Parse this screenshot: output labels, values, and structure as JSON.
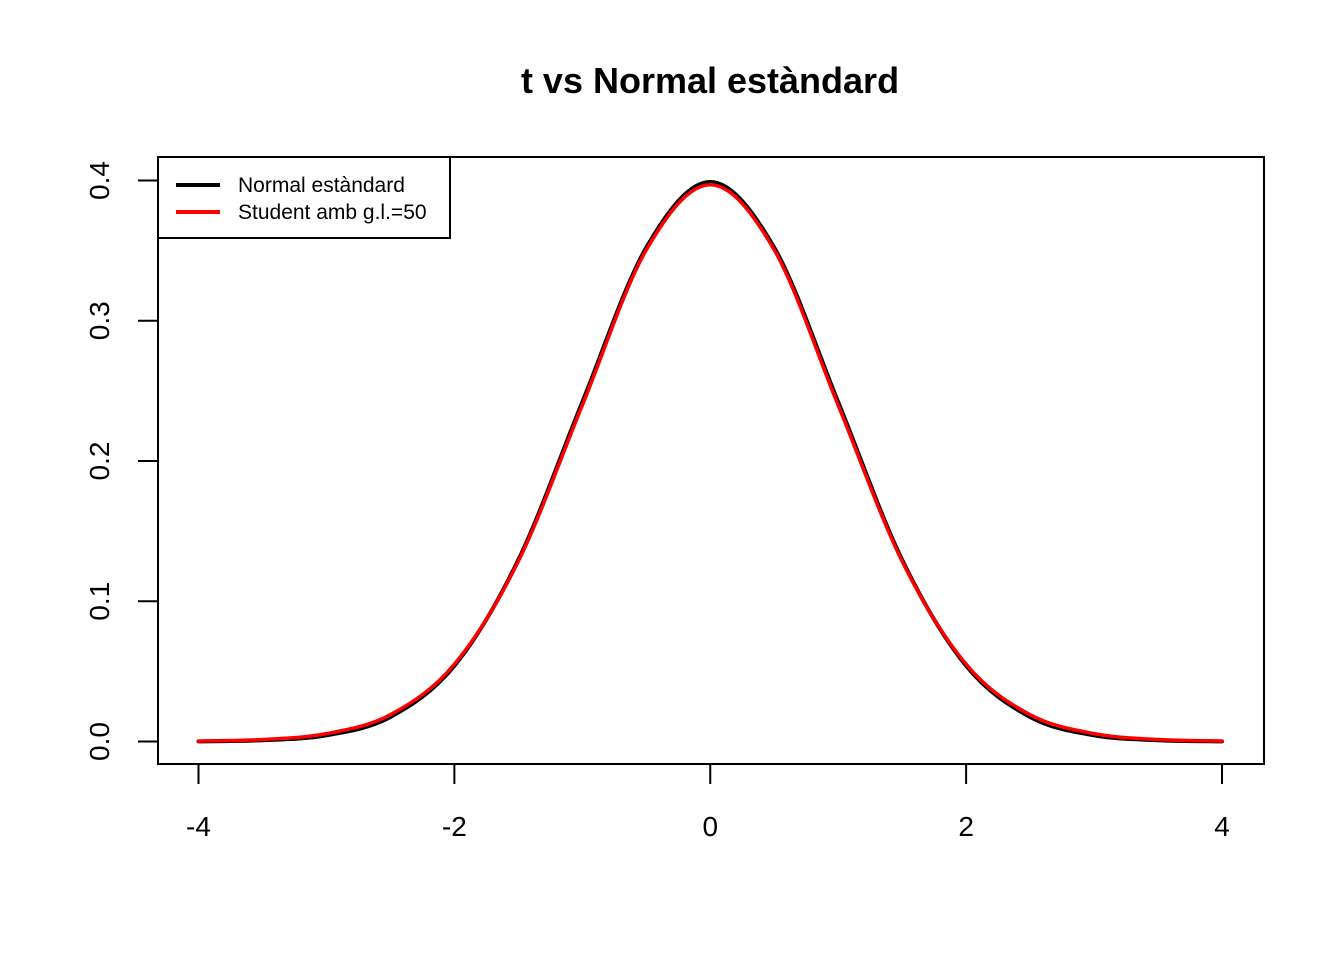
{
  "chart_data": {
    "type": "line",
    "title": "t vs Normal estàndard",
    "xlabel": "",
    "ylabel": "",
    "xlim": [
      -4,
      4
    ],
    "ylim": [
      0,
      0.4
    ],
    "x_ticks": [
      "-4",
      "-2",
      "0",
      "2",
      "4"
    ],
    "y_ticks": [
      "0.0",
      "0.1",
      "0.2",
      "0.3",
      "0.4"
    ],
    "grid": false,
    "legend_position": "top-left",
    "series": [
      {
        "name": "Normal estàndard",
        "color": "#000000",
        "x": [
          -4,
          -3.5,
          -3,
          -2.5,
          -2,
          -1.5,
          -1,
          -0.5,
          0,
          0.5,
          1,
          1.5,
          2,
          2.5,
          3,
          3.5,
          4
        ],
        "y": [
          0.0001,
          0.0009,
          0.0044,
          0.0175,
          0.054,
          0.1295,
          0.242,
          0.3521,
          0.3989,
          0.3521,
          0.242,
          0.1295,
          0.054,
          0.0175,
          0.0044,
          0.0009,
          0.0001
        ]
      },
      {
        "name": "Student amb g.l.=50",
        "color": "#ff0000",
        "x": [
          -4,
          -3.5,
          -3,
          -2.5,
          -2,
          -1.5,
          -1,
          -0.5,
          0,
          0.5,
          1,
          1.5,
          2,
          2.5,
          3,
          3.5,
          4
        ],
        "y": [
          0.0003,
          0.0014,
          0.0056,
          0.0191,
          0.0551,
          0.1285,
          0.2397,
          0.3505,
          0.397,
          0.3505,
          0.2397,
          0.1285,
          0.0551,
          0.0191,
          0.0056,
          0.0014,
          0.0003
        ]
      }
    ]
  }
}
